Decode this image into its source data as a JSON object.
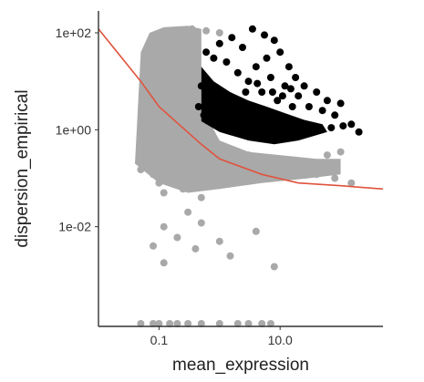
{
  "chart_data": {
    "type": "scatter",
    "xlabel": "mean_expression",
    "ylabel": "dispersion_empirical",
    "x_scale": "log10",
    "y_scale": "log10",
    "xlim": [
      0.01,
      500
    ],
    "ylim": [
      0.0001,
      200
    ],
    "grid": false,
    "x_ticks": [
      {
        "value": 0.1,
        "label": "0.1"
      },
      {
        "value": 10,
        "label": "10.0"
      }
    ],
    "y_ticks": [
      {
        "value": 100,
        "label": "1e+02"
      },
      {
        "value": 1,
        "label": "1e+00"
      },
      {
        "value": 0.01,
        "label": "1e-02"
      }
    ],
    "colors": {
      "unselected": "#a9a9a9",
      "selected": "#000000",
      "fit_line": "#e0533d",
      "axis": "#333333"
    },
    "series": [
      {
        "role": "unselected genes (grey)",
        "points": [
          [
            0.06,
            0.3
          ],
          [
            0.08,
            0.12
          ],
          [
            0.05,
            0.4
          ],
          [
            0.07,
            0.9
          ],
          [
            0.09,
            2.5
          ],
          [
            0.06,
            6
          ],
          [
            0.07,
            20
          ],
          [
            0.08,
            50
          ],
          [
            0.09,
            0.2
          ],
          [
            0.05,
            0.15
          ],
          [
            0.1,
            0.08
          ],
          [
            0.12,
            0.05
          ],
          [
            0.15,
            0.3
          ],
          [
            0.2,
            0.12
          ],
          [
            0.25,
            0.06
          ],
          [
            0.3,
            0.2
          ],
          [
            0.4,
            0.1
          ],
          [
            0.5,
            0.04
          ],
          [
            0.6,
            0.15
          ],
          [
            0.8,
            0.3
          ],
          [
            1.0,
            0.08
          ],
          [
            1.5,
            0.2
          ],
          [
            2.0,
            0.12
          ],
          [
            3.0,
            0.3
          ],
          [
            5.0,
            0.1
          ],
          [
            8.0,
            0.2
          ],
          [
            15,
            0.15
          ],
          [
            30,
            0.2
          ],
          [
            60,
            0.3
          ],
          [
            100,
            0.35
          ],
          [
            0.12,
            0.01
          ],
          [
            0.3,
            0.02
          ],
          [
            0.5,
            0.012
          ],
          [
            0.08,
            0.004
          ],
          [
            0.2,
            0.006
          ],
          [
            1.0,
            0.005
          ],
          [
            4.0,
            0.008
          ],
          [
            1.5,
            0.0025
          ],
          [
            8.0,
            0.0015
          ],
          [
            0.4,
            0.0035
          ],
          [
            0.12,
            0.0018
          ],
          [
            0.15,
            0.1
          ],
          [
            0.11,
            30
          ],
          [
            0.13,
            60
          ],
          [
            0.15,
            80
          ],
          [
            0.18,
            100
          ],
          [
            0.25,
            110
          ],
          [
            0.35,
            120
          ],
          [
            0.6,
            110
          ],
          [
            1.0,
            100
          ],
          [
            0.1,
            15
          ],
          [
            0.14,
            8
          ],
          [
            0.18,
            4
          ],
          [
            0.22,
            2
          ],
          [
            0.3,
            1
          ],
          [
            0.4,
            0.6
          ],
          [
            0.7,
            0.4
          ],
          [
            1.2,
            0.3
          ],
          [
            2.5,
            0.25
          ],
          [
            6.0,
            0.2
          ],
          [
            12,
            0.18
          ],
          [
            20,
            0.22
          ],
          [
            40,
            0.12
          ],
          [
            80,
            0.1
          ],
          [
            150,
            0.08
          ],
          [
            0.05,
            0.0001
          ],
          [
            0.08,
            0.0001
          ],
          [
            0.1,
            0.0001
          ],
          [
            0.15,
            0.0001
          ],
          [
            0.2,
            0.0001
          ],
          [
            0.3,
            0.0001
          ],
          [
            0.5,
            0.0001
          ],
          [
            1.0,
            0.0001
          ],
          [
            2.0,
            0.0001
          ],
          [
            3.0,
            0.0001
          ],
          [
            5.0,
            0.0001
          ],
          [
            7.0,
            0.0001
          ]
        ]
      },
      {
        "role": "selected genes (black)",
        "points": [
          [
            0.5,
            8
          ],
          [
            0.6,
            40
          ],
          [
            0.8,
            30
          ],
          [
            1.0,
            60
          ],
          [
            1.3,
            25
          ],
          [
            1.6,
            80
          ],
          [
            2.0,
            15
          ],
          [
            2.4,
            50
          ],
          [
            3.0,
            10
          ],
          [
            3.5,
            120
          ],
          [
            4.0,
            20
          ],
          [
            5.0,
            6
          ],
          [
            5.5,
            90
          ],
          [
            6.0,
            30
          ],
          [
            7.0,
            12
          ],
          [
            8.0,
            70
          ],
          [
            9.0,
            4
          ],
          [
            10,
            40
          ],
          [
            12,
            8
          ],
          [
            14,
            20
          ],
          [
            16,
            3
          ],
          [
            18,
            12
          ],
          [
            20,
            5
          ],
          [
            25,
            8
          ],
          [
            30,
            3
          ],
          [
            40,
            6
          ],
          [
            50,
            2.5
          ],
          [
            60,
            4
          ],
          [
            80,
            2
          ],
          [
            100,
            3.5
          ],
          [
            150,
            1.3
          ],
          [
            200,
            0.9
          ],
          [
            0.45,
            3
          ],
          [
            0.55,
            2
          ],
          [
            0.7,
            5
          ],
          [
            0.9,
            3
          ],
          [
            1.1,
            2
          ],
          [
            1.5,
            4
          ],
          [
            2.2,
            3
          ],
          [
            3.2,
            2.5
          ],
          [
            4.5,
            2
          ],
          [
            6.5,
            1.8
          ],
          [
            9.5,
            1.6
          ],
          [
            13,
            1.5
          ],
          [
            18,
            1.3
          ],
          [
            26,
            1.2
          ],
          [
            35,
            1.1
          ],
          [
            48,
            1.0
          ],
          [
            70,
            1.1
          ],
          [
            110,
            1.2
          ],
          [
            2.7,
            6
          ],
          [
            4.2,
            9
          ],
          [
            7.5,
            6
          ],
          [
            11,
            5
          ],
          [
            15,
            7
          ]
        ]
      }
    ],
    "fit_line": [
      [
        0.01,
        120
      ],
      [
        0.05,
        10
      ],
      [
        0.1,
        3
      ],
      [
        0.5,
        0.5
      ],
      [
        1,
        0.25
      ],
      [
        5,
        0.12
      ],
      [
        20,
        0.08
      ],
      [
        100,
        0.07
      ],
      [
        500,
        0.06
      ]
    ]
  }
}
